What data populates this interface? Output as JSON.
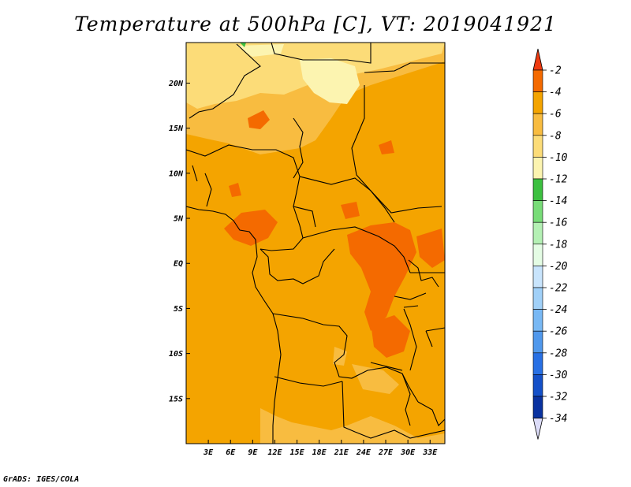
{
  "title": "Temperature at 500hPa [C], VT: 2019041921",
  "footer": "GrADS: IGES/COLA",
  "map": {
    "region": "Central Africa",
    "lon_range": [
      0,
      35
    ],
    "lat_range": [
      -20,
      24.5
    ],
    "x_ticks": [
      "3E",
      "6E",
      "9E",
      "12E",
      "15E",
      "18E",
      "21E",
      "24E",
      "27E",
      "30E",
      "33E"
    ],
    "y_ticks": [
      "20N",
      "15N",
      "10N",
      "5N",
      "EQ",
      "5S",
      "10S",
      "15S"
    ],
    "background_color": "#f4a400"
  },
  "colorbar": {
    "labels": [
      "-2",
      "-4",
      "-6",
      "-8",
      "-10",
      "-12",
      "-14",
      "-16",
      "-18",
      "-20",
      "-22",
      "-24",
      "-26",
      "-28",
      "-30",
      "-32",
      "-34"
    ],
    "top_arrow_color": "#ee3a10",
    "bottom_arrow_color": "#dcdcf8",
    "segment_colors": [
      "#f46a00",
      "#f4a400",
      "#f8bc40",
      "#fcdc78",
      "#fcf4b0",
      "#3cc040",
      "#78dc78",
      "#b4f0b4",
      "#e4fce4",
      "#c8e4fc",
      "#a0d0f8",
      "#78b8f4",
      "#5098ec",
      "#2870e4",
      "#1450c8",
      "#0a32a0"
    ]
  }
}
